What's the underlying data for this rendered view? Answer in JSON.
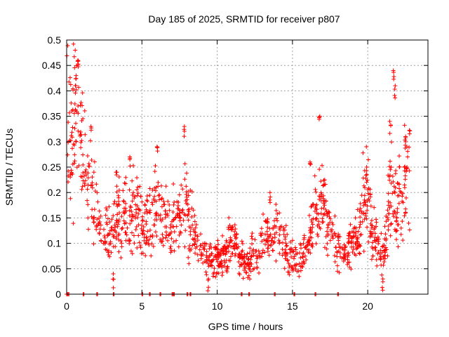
{
  "chart_data": {
    "type": "scatter",
    "title": "Day 185 of 2025, SRMTID for receiver p807",
    "xlabel": "GPS time / hours",
    "ylabel": "SRMTID / TECUs",
    "xlim": [
      0,
      24
    ],
    "ylim": [
      0,
      0.5
    ],
    "xticks": [
      0,
      5,
      10,
      15,
      20
    ],
    "xtick_labels": [
      "0",
      "5",
      "10",
      "15",
      "20"
    ],
    "yticks": [
      0,
      0.05,
      0.1,
      0.15,
      0.2,
      0.25,
      0.3,
      0.35,
      0.4,
      0.45,
      0.5
    ],
    "ytick_labels": [
      "0",
      "0.05",
      "0.1",
      "0.15",
      "0.2",
      "0.25",
      "0.3",
      "0.35",
      "0.4",
      "0.45",
      "0.5"
    ],
    "grid": true,
    "marker": "plus",
    "series_color": "#ff0000",
    "series": [
      {
        "name": "SRMTID",
        "trend": [
          [
            0.0,
            0.33
          ],
          [
            0.3,
            0.3
          ],
          [
            0.6,
            0.36
          ],
          [
            0.9,
            0.3
          ],
          [
            1.2,
            0.23
          ],
          [
            1.5,
            0.22
          ],
          [
            1.8,
            0.18
          ],
          [
            2.1,
            0.15
          ],
          [
            2.5,
            0.12
          ],
          [
            3.0,
            0.12
          ],
          [
            3.5,
            0.15
          ],
          [
            4.0,
            0.15
          ],
          [
            4.5,
            0.17
          ],
          [
            5.0,
            0.13
          ],
          [
            5.5,
            0.15
          ],
          [
            6.0,
            0.17
          ],
          [
            6.5,
            0.14
          ],
          [
            7.0,
            0.13
          ],
          [
            7.5,
            0.16
          ],
          [
            8.0,
            0.17
          ],
          [
            8.5,
            0.12
          ],
          [
            9.0,
            0.08
          ],
          [
            9.5,
            0.07
          ],
          [
            10.0,
            0.07
          ],
          [
            10.5,
            0.08
          ],
          [
            11.0,
            0.11
          ],
          [
            11.5,
            0.07
          ],
          [
            12.0,
            0.06
          ],
          [
            12.5,
            0.07
          ],
          [
            13.0,
            0.1
          ],
          [
            13.5,
            0.12
          ],
          [
            14.0,
            0.13
          ],
          [
            14.5,
            0.09
          ],
          [
            15.0,
            0.07
          ],
          [
            15.5,
            0.07
          ],
          [
            16.0,
            0.1
          ],
          [
            16.5,
            0.16
          ],
          [
            17.0,
            0.18
          ],
          [
            17.5,
            0.13
          ],
          [
            18.0,
            0.1
          ],
          [
            18.5,
            0.08
          ],
          [
            19.0,
            0.11
          ],
          [
            19.5,
            0.13
          ],
          [
            19.9,
            0.22
          ],
          [
            20.3,
            0.12
          ],
          [
            20.7,
            0.09
          ],
          [
            21.1,
            0.08
          ],
          [
            21.5,
            0.2
          ],
          [
            22.0,
            0.18
          ],
          [
            22.5,
            0.22
          ],
          [
            22.8,
            0.26
          ]
        ],
        "spikes": [
          [
            0.75,
            0.46
          ],
          [
            0.6,
            0.43
          ],
          [
            1.6,
            0.33
          ],
          [
            3.3,
            0.24
          ],
          [
            4.2,
            0.27
          ],
          [
            6.0,
            0.29
          ],
          [
            7.8,
            0.33
          ],
          [
            12.3,
            0.12
          ],
          [
            13.5,
            0.2
          ],
          [
            16.2,
            0.26
          ],
          [
            16.8,
            0.35
          ],
          [
            19.9,
            0.25
          ],
          [
            21.7,
            0.44
          ],
          [
            21.8,
            0.41
          ],
          [
            21.5,
            0.34
          ],
          [
            22.5,
            0.31
          ],
          [
            21.0,
            0.03
          ],
          [
            9.4,
            0.03
          ],
          [
            3.1,
            0.04
          ]
        ],
        "gaps_at_zero": [
          0.0,
          0.1,
          1.1,
          2.0,
          3.1,
          5.0,
          5.5,
          6.2,
          7.0,
          7.1,
          8.0,
          8.2,
          11.6,
          12.1,
          13.8,
          15.1,
          16.5,
          18.0
        ]
      }
    ]
  }
}
